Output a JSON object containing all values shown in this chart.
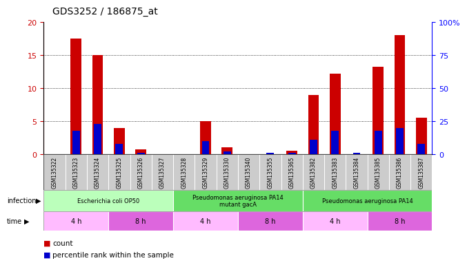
{
  "title": "GDS3252 / 186875_at",
  "samples": [
    "GSM135322",
    "GSM135323",
    "GSM135324",
    "GSM135325",
    "GSM135326",
    "GSM135327",
    "GSM135328",
    "GSM135329",
    "GSM135330",
    "GSM135340",
    "GSM135355",
    "GSM135365",
    "GSM135382",
    "GSM135383",
    "GSM135384",
    "GSM135385",
    "GSM135386",
    "GSM135387"
  ],
  "count_values": [
    0.0,
    17.5,
    15.0,
    4.0,
    0.7,
    0.0,
    0.0,
    5.0,
    1.0,
    0.0,
    0.0,
    0.5,
    9.0,
    12.2,
    0.0,
    13.2,
    18.0,
    5.5
  ],
  "percentile_values_pct": [
    0,
    18,
    23,
    8,
    1,
    0,
    0,
    10,
    2,
    0,
    1,
    1,
    11,
    18,
    1,
    18,
    20,
    8
  ],
  "infection_groups": [
    {
      "label": "Escherichia coli OP50",
      "start": 0,
      "end": 6,
      "color": "#bbffbb"
    },
    {
      "label": "Pseudomonas aeruginosa PA14\nmutant gacA",
      "start": 6,
      "end": 12,
      "color": "#66dd66"
    },
    {
      "label": "Pseudomonas aeruginosa PA14",
      "start": 12,
      "end": 18,
      "color": "#66dd66"
    }
  ],
  "time_groups": [
    {
      "label": "4 h",
      "start": 0,
      "end": 3,
      "color": "#ffbbff"
    },
    {
      "label": "8 h",
      "start": 3,
      "end": 6,
      "color": "#dd66dd"
    },
    {
      "label": "4 h",
      "start": 6,
      "end": 9,
      "color": "#ffbbff"
    },
    {
      "label": "8 h",
      "start": 9,
      "end": 12,
      "color": "#dd66dd"
    },
    {
      "label": "4 h",
      "start": 12,
      "end": 15,
      "color": "#ffbbff"
    },
    {
      "label": "8 h",
      "start": 15,
      "end": 18,
      "color": "#dd66dd"
    }
  ],
  "ylim_left": [
    0,
    20
  ],
  "ylim_right": [
    0,
    100
  ],
  "yticks_left": [
    0,
    5,
    10,
    15,
    20
  ],
  "yticks_right": [
    0,
    25,
    50,
    75,
    100
  ],
  "ytick_labels_left": [
    "0",
    "5",
    "10",
    "15",
    "20"
  ],
  "ytick_labels_right": [
    "0",
    "25",
    "50",
    "75",
    "100%"
  ],
  "count_color": "#cc0000",
  "percentile_color": "#0000cc",
  "bg_color": "#ffffff",
  "infection_label": "infection",
  "time_label": "time",
  "count_bar_width": 0.5,
  "pct_bar_width": 0.35
}
